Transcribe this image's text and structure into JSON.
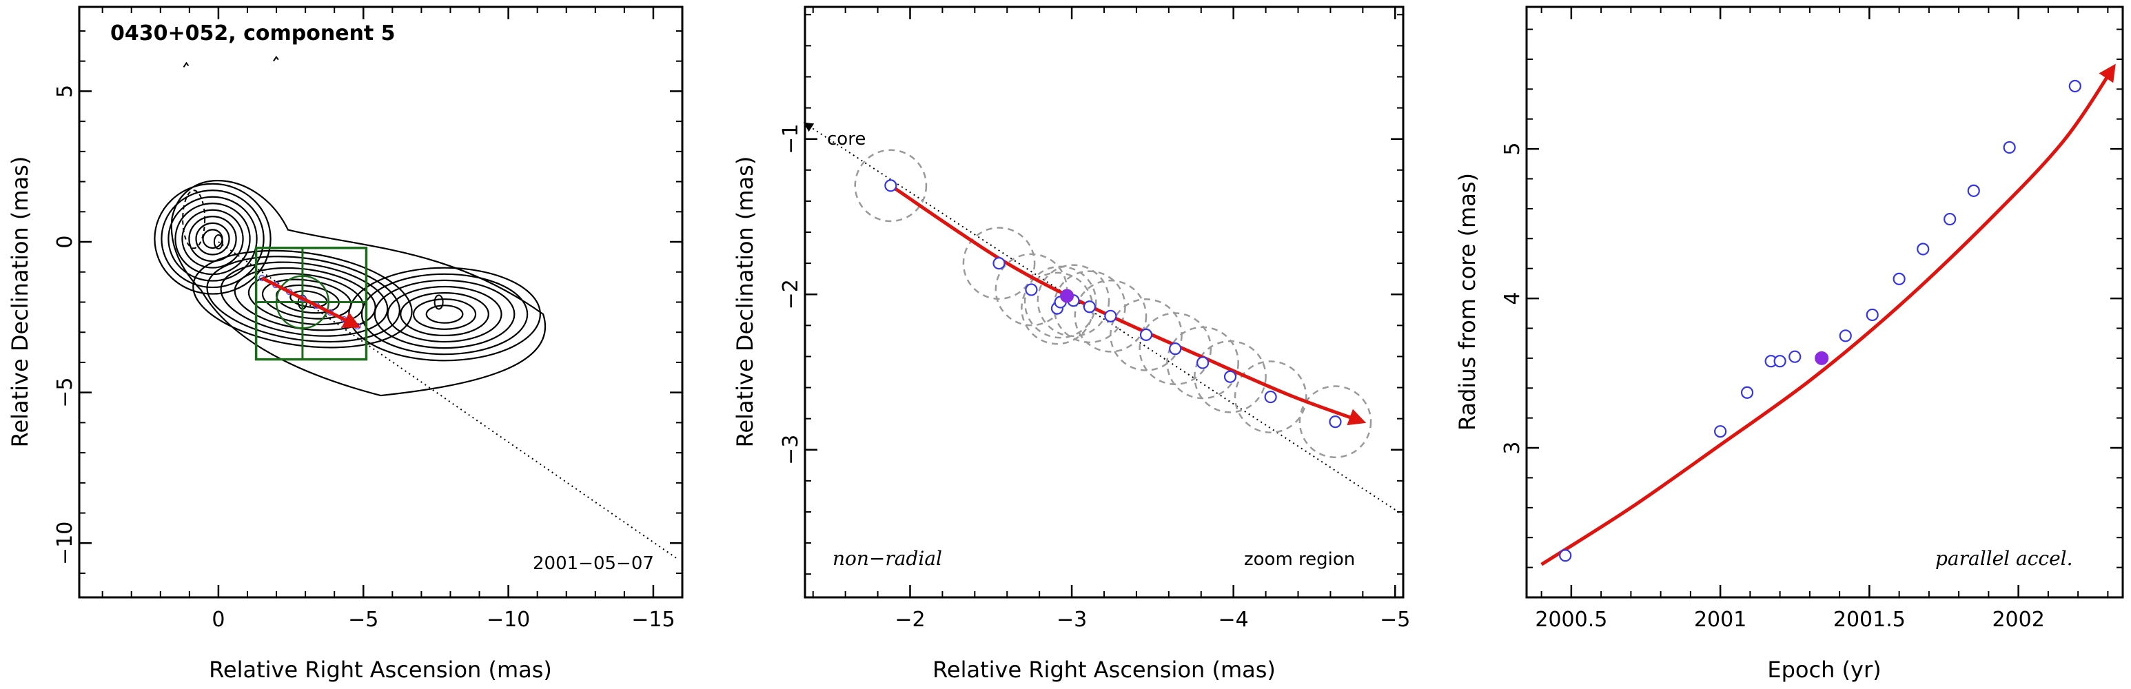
{
  "chart_data": [
    {
      "type": "scatter",
      "panel": "contour-map",
      "title": "0430+052, component 5",
      "xlabel": "Relative Right Ascension (mas)",
      "ylabel": "Relative Declination (mas)",
      "xlim": [
        4.8,
        -16.0
      ],
      "ylim": [
        -11.8,
        7.8
      ],
      "xticks": [
        0,
        -5,
        -10,
        -15
      ],
      "xtick_labels": [
        "0",
        "−5",
        "−10",
        "−15"
      ],
      "yticks": [
        5,
        0,
        -5,
        -10
      ],
      "ytick_labels": [
        "5",
        "0",
        "−5",
        "−10"
      ],
      "date_label": "2001−05−07",
      "zoom_box": {
        "x_range": [
          -1.3,
          -5.1
        ],
        "y_range": [
          -0.2,
          -3.9
        ]
      },
      "crosshair": {
        "x": -2.9,
        "y": -2.0
      },
      "radial_line": {
        "from": [
          0,
          0
        ],
        "to": [
          -15.8,
          -10.5
        ]
      },
      "track": {
        "from": [
          -1.5,
          -1.2
        ],
        "to": [
          -4.8,
          -2.8
        ]
      },
      "contour_peaks": [
        {
          "x": 0,
          "y": 0
        },
        {
          "x": -2.9,
          "y": -2.0
        },
        {
          "x": -7.6,
          "y": -2.0
        }
      ],
      "grid": false
    },
    {
      "type": "scatter",
      "panel": "zoom-region",
      "xlabel": "Relative Right Ascension (mas)",
      "ylabel": "Relative Declination (mas)",
      "xlim": [
        -1.35,
        -5.05
      ],
      "ylim": [
        -3.95,
        -0.15
      ],
      "xticks": [
        -2,
        -3,
        -4,
        -5
      ],
      "xtick_labels": [
        "−2",
        "−3",
        "−4",
        "−5"
      ],
      "yticks": [
        -1,
        -2,
        -3
      ],
      "ytick_labels": [
        "−1",
        "−2",
        "−3"
      ],
      "annotations": {
        "core": "core",
        "left": "non−radial",
        "right": "zoom region"
      },
      "radial_line": {
        "from": [
          -1.35,
          -0.9
        ],
        "to": [
          -5.05,
          -3.42
        ]
      },
      "track_curve": [
        [
          -1.88,
          -1.3
        ],
        [
          -2.6,
          -1.8
        ],
        [
          -3.2,
          -2.12
        ],
        [
          -3.8,
          -2.4
        ],
        [
          -4.35,
          -2.65
        ],
        [
          -4.8,
          -2.82
        ]
      ],
      "series": [
        {
          "name": "",
          "x": [
            -1.88,
            -2.55,
            -2.75,
            -2.91,
            -2.93,
            -3.01,
            -3.11,
            -3.24,
            -3.46,
            -3.64,
            -3.81,
            -3.98,
            -4.23,
            -4.63
          ],
          "y": [
            -1.3,
            -1.8,
            -1.97,
            -2.09,
            -2.05,
            -2.04,
            -2.08,
            -2.14,
            -2.26,
            -2.35,
            -2.44,
            -2.53,
            -2.66,
            -2.82
          ]
        },
        {
          "name": "",
          "x": [
            -2.97
          ],
          "y": [
            -2.01
          ],
          "filled": true
        }
      ],
      "error_circle_radius": 0.22,
      "grid": false
    },
    {
      "type": "scatter",
      "panel": "radius-epoch",
      "xlabel": "Epoch (yr)",
      "ylabel": "Radius from core (mas)",
      "xlim": [
        2000.35,
        2002.35
      ],
      "ylim": [
        2.0,
        5.95
      ],
      "xticks": [
        2000.5,
        2001,
        2001.5,
        2002
      ],
      "xtick_labels": [
        "2000.5",
        "2001",
        "2001.5",
        "2002"
      ],
      "yticks": [
        3,
        4,
        5
      ],
      "ytick_labels": [
        "3",
        "4",
        "5"
      ],
      "annotation": "parallel accel.",
      "fit_curve": {
        "x": [
          2000.4,
          2000.7,
          2001.0,
          2001.3,
          2001.6,
          2001.9,
          2002.15,
          2002.32
        ],
        "y": [
          2.22,
          2.6,
          3.02,
          3.45,
          3.95,
          4.52,
          5.05,
          5.55
        ]
      },
      "series": [
        {
          "name": "",
          "x": [
            2000.48,
            2001.0,
            2001.09,
            2001.17,
            2001.2,
            2001.25,
            2001.42,
            2001.51,
            2001.6,
            2001.68,
            2001.77,
            2001.85,
            2001.97,
            2002.19
          ],
          "y": [
            2.28,
            3.11,
            3.37,
            3.58,
            3.58,
            3.61,
            3.75,
            3.89,
            4.13,
            4.33,
            4.53,
            4.72,
            5.01,
            5.42
          ]
        },
        {
          "name": "",
          "x": [
            2001.34
          ],
          "y": [
            3.6
          ],
          "filled": true
        }
      ],
      "grid": false
    }
  ]
}
